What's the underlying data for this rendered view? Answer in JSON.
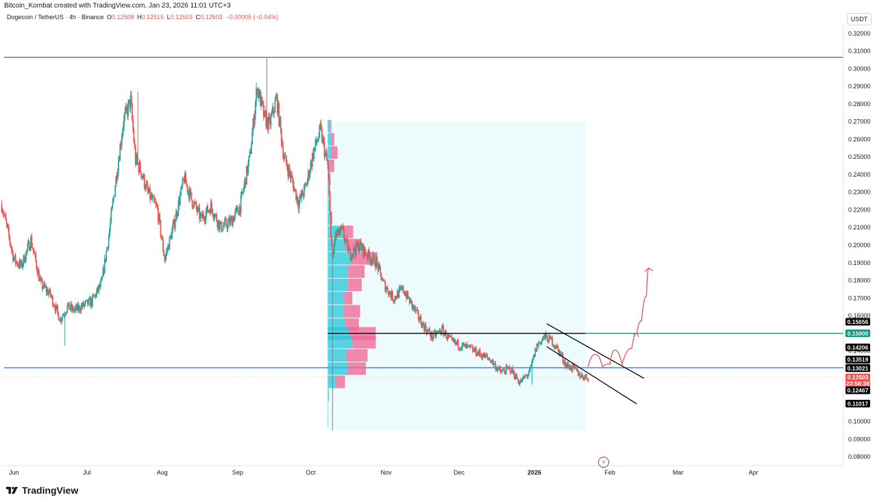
{
  "credit": "Bitcoin_Kombat created with TradingView.com, Jan 23, 2026 11:01 UTC+3",
  "symbol": {
    "name": "Dogecoin / TetherUS · 4h · Binance",
    "o_label": "O",
    "o": "0.12508",
    "h_label": "H",
    "h": "0.12515",
    "l_label": "L",
    "l": "0.12503",
    "c_label": "C",
    "c": "0.12503",
    "change": "−0.00005 (−0.04%)"
  },
  "currency": "USDT",
  "brand": "TradingView",
  "colors": {
    "up": "#26a69a",
    "down": "#ef5350",
    "blue_line": "#2962ff",
    "teal_line": "#089981",
    "vp_up": "#26c6da",
    "vp_down": "#f06292",
    "vp_bg": "#e0f7fa",
    "arrow": "#ef5350"
  },
  "chart_data": {
    "type": "candlestick",
    "x_unit": "date",
    "x": [
      "2025-05-27",
      "2025-06-01",
      "2025-06-04",
      "2025-06-08",
      "2025-06-12",
      "2025-06-16",
      "2025-06-20",
      "2025-06-23",
      "2025-06-26",
      "2025-06-30",
      "2025-07-03",
      "2025-07-07",
      "2025-07-10",
      "2025-07-13",
      "2025-07-16",
      "2025-07-19",
      "2025-07-21",
      "2025-07-23",
      "2025-07-26",
      "2025-07-30",
      "2025-08-02",
      "2025-08-06",
      "2025-08-10",
      "2025-08-13",
      "2025-08-17",
      "2025-08-21",
      "2025-08-25",
      "2025-08-29",
      "2025-09-02",
      "2025-09-06",
      "2025-09-09",
      "2025-09-12",
      "2025-09-14",
      "2025-09-17",
      "2025-09-20",
      "2025-09-23",
      "2025-09-26",
      "2025-09-29",
      "2025-10-02",
      "2025-10-05",
      "2025-10-08",
      "2025-10-10",
      "2025-10-11",
      "2025-10-14",
      "2025-10-17",
      "2025-10-21",
      "2025-10-24",
      "2025-10-28",
      "2025-10-31",
      "2025-11-04",
      "2025-11-08",
      "2025-11-12",
      "2025-11-16",
      "2025-11-20",
      "2025-11-24",
      "2025-11-28",
      "2025-12-02",
      "2025-12-06",
      "2025-12-10",
      "2025-12-14",
      "2025-12-18",
      "2025-12-22",
      "2025-12-26",
      "2025-12-30",
      "2026-01-02",
      "2026-01-05",
      "2026-01-08",
      "2026-01-11",
      "2026-01-14",
      "2026-01-17",
      "2026-01-20",
      "2026-01-23"
    ],
    "close": [
      0.223,
      0.192,
      0.188,
      0.203,
      0.178,
      0.172,
      0.158,
      0.165,
      0.163,
      0.166,
      0.168,
      0.178,
      0.205,
      0.238,
      0.27,
      0.282,
      0.248,
      0.243,
      0.23,
      0.22,
      0.192,
      0.213,
      0.238,
      0.226,
      0.215,
      0.222,
      0.21,
      0.213,
      0.222,
      0.25,
      0.29,
      0.272,
      0.268,
      0.283,
      0.25,
      0.238,
      0.224,
      0.233,
      0.252,
      0.265,
      0.245,
      0.19,
      0.205,
      0.208,
      0.195,
      0.2,
      0.195,
      0.19,
      0.178,
      0.17,
      0.175,
      0.165,
      0.155,
      0.148,
      0.152,
      0.145,
      0.143,
      0.141,
      0.138,
      0.135,
      0.128,
      0.13,
      0.122,
      0.128,
      0.143,
      0.148,
      0.146,
      0.14,
      0.132,
      0.13,
      0.126,
      0.125
    ],
    "high_points": [
      {
        "x": "2025-07-22",
        "y": 0.287
      },
      {
        "x": "2025-09-13",
        "y": 0.306
      }
    ],
    "low_points": [
      {
        "x": "2025-06-22",
        "y": 0.143
      },
      {
        "x": "2025-10-10",
        "y": 0.095
      },
      {
        "x": "2025-12-31",
        "y": 0.121
      }
    ],
    "ylim": [
      0.075,
      0.325
    ],
    "y_ticks": [
      0.32,
      0.31,
      0.3,
      0.29,
      0.28,
      0.27,
      0.26,
      0.25,
      0.24,
      0.23,
      0.22,
      0.21,
      0.2,
      0.19,
      0.18,
      0.17,
      0.16,
      0.15,
      0.14,
      0.13,
      0.12,
      0.11,
      0.1,
      0.09,
      0.08
    ],
    "y_tick_labels": [
      "0.32000",
      "0.31000",
      "0.30000",
      "0.29000",
      "0.28000",
      "0.27000",
      "0.26000",
      "0.25000",
      "0.24000",
      "0.23000",
      "0.22000",
      "0.21000",
      "0.20000",
      "0.19000",
      "0.18000",
      "0.17000",
      "0.16000",
      "0.15000",
      "0.14000",
      "0.13000",
      "0.12000",
      "0.11000",
      "0.10000",
      "0.09000",
      "0.08000"
    ],
    "x_ticks": [
      {
        "label": "Jun",
        "date": "2025-06-01"
      },
      {
        "label": "Jul",
        "date": "2025-07-01"
      },
      {
        "label": "Aug",
        "date": "2025-08-01"
      },
      {
        "label": "Sep",
        "date": "2025-09-01"
      },
      {
        "label": "Oct",
        "date": "2025-10-01"
      },
      {
        "label": "Nov",
        "date": "2025-11-01"
      },
      {
        "label": "Dec",
        "date": "2025-12-01"
      },
      {
        "label": "2026",
        "date": "2026-01-01",
        "bold": true
      },
      {
        "label": "Feb",
        "date": "2026-02-01"
      },
      {
        "label": "Mar",
        "date": "2026-03-01"
      },
      {
        "label": "Apr",
        "date": "2026-04-01"
      }
    ],
    "x_range": [
      "2025-05-28",
      "2026-05-08"
    ],
    "horizontal_lines": [
      {
        "y": 0.3065,
        "color": "#2962ff",
        "from": "2025-05-28"
      },
      {
        "y": 0.1305,
        "color": "#2962ff",
        "from": "2025-05-28"
      },
      {
        "y": 0.15,
        "color": "#089981",
        "from": "2026-01-22"
      }
    ],
    "trend_lines": [
      {
        "color": "#000000",
        "x1": "2025-10-08",
        "y1": 0.15,
        "x2": "2026-01-22",
        "y2": 0.15
      },
      {
        "color": "#000000",
        "x1": "2026-01-06",
        "y1": 0.1555,
        "x2": "2026-02-15",
        "y2": 0.1245
      },
      {
        "color": "#000000",
        "x1": "2026-01-06",
        "y1": 0.1425,
        "x2": "2026-02-12",
        "y2": 0.11
      }
    ],
    "projection_path": [
      {
        "x": "2026-01-23",
        "y": 0.131
      },
      {
        "x": "2026-01-26",
        "y": 0.138
      },
      {
        "x": "2026-01-29",
        "y": 0.131
      },
      {
        "x": "2026-02-01",
        "y": 0.1325
      },
      {
        "x": "2026-02-03",
        "y": 0.1405
      },
      {
        "x": "2026-02-06",
        "y": 0.1325
      },
      {
        "x": "2026-02-10",
        "y": 0.1415
      },
      {
        "x": "2026-02-12",
        "y": 0.15
      },
      {
        "x": "2026-02-14",
        "y": 0.157
      },
      {
        "x": "2026-02-16",
        "y": 0.171
      },
      {
        "x": "2026-02-17",
        "y": 0.187
      }
    ],
    "volume_profile": {
      "range_from": "2025-10-08",
      "range_to": "2026-01-22",
      "price_from": 0.095,
      "price_to": 0.27,
      "rows": [
        {
          "price": 0.2675,
          "up": 0.06,
          "down": 0.03
        },
        {
          "price": 0.26,
          "up": 0.08,
          "down": 0.08
        },
        {
          "price": 0.2525,
          "up": 0.08,
          "down": 0.16
        },
        {
          "price": 0.245,
          "up": 0.06,
          "down": 0.1
        },
        {
          "price": 0.2375,
          "up": 0.03,
          "down": 0.04
        },
        {
          "price": 0.23,
          "up": 0.02,
          "down": 0.02
        },
        {
          "price": 0.2225,
          "up": 0.04,
          "down": 0.02
        },
        {
          "price": 0.215,
          "up": 0.07,
          "down": 0.04
        },
        {
          "price": 0.2075,
          "up": 0.4,
          "down": 0.22
        },
        {
          "price": 0.2,
          "up": 0.42,
          "down": 0.4
        },
        {
          "price": 0.1925,
          "up": 0.55,
          "down": 0.66
        },
        {
          "price": 0.185,
          "up": 0.5,
          "down": 0.4
        },
        {
          "price": 0.1775,
          "up": 0.5,
          "down": 0.33
        },
        {
          "price": 0.17,
          "up": 0.4,
          "down": 0.2
        },
        {
          "price": 0.1625,
          "up": 0.4,
          "down": 0.39
        },
        {
          "price": 0.155,
          "up": 0.42,
          "down": 0.34
        },
        {
          "price": 0.15,
          "up": 0.53,
          "down": 0.64
        },
        {
          "price": 0.145,
          "up": 0.6,
          "down": 0.57
        },
        {
          "price": 0.1375,
          "up": 0.45,
          "down": 0.52
        },
        {
          "price": 0.13,
          "up": 0.48,
          "down": 0.45
        },
        {
          "price": 0.1225,
          "up": 0.2,
          "down": 0.22
        },
        {
          "price": 0.115,
          "up": 0.02,
          "down": 0.01
        },
        {
          "price": 0.1075,
          "up": 0.01,
          "down": 0.0
        },
        {
          "price": 0.1,
          "up": 0.01,
          "down": 0.0
        }
      ]
    },
    "price_badges": [
      {
        "text": "0.15656",
        "y": 0.15656,
        "bg": "#000000"
      },
      {
        "text": "0.15000",
        "y": 0.15,
        "bg": "#089981"
      },
      {
        "text": "0.14206",
        "y": 0.14206,
        "bg": "#000000"
      },
      {
        "text": "0.13519",
        "y": 0.13519,
        "bg": "#000000"
      },
      {
        "text": "0.13066",
        "y": 0.13066,
        "bg": "#089981"
      },
      {
        "text": "0.13021",
        "y": 0.13021,
        "bg": "#000000"
      },
      {
        "text": "0.12503",
        "y": 0.12503,
        "bg": "#ef5350"
      },
      {
        "text": "23:58:38",
        "y": 0.1216,
        "bg": "#ef5350"
      },
      {
        "text": "0.12467",
        "y": 0.1177,
        "bg": "#000000"
      },
      {
        "text": "0.11017",
        "y": 0.11017,
        "bg": "#000000"
      }
    ]
  }
}
